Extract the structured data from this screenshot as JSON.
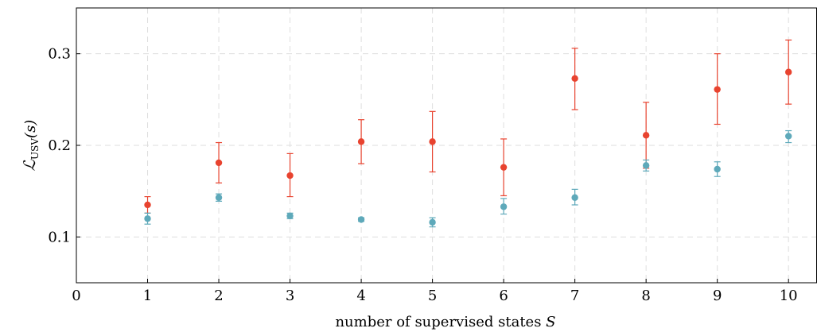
{
  "chart_data": {
    "type": "scatter",
    "xlabel_text": "number of supervised states ",
    "xlabel_var": "S",
    "ylabel_main": "ℒ",
    "ylabel_sub": "USV",
    "ylabel_tail": "(s)",
    "xlim": [
      0,
      10.4
    ],
    "ylim": [
      0.05,
      0.35
    ],
    "x_ticks": [
      0,
      1,
      2,
      3,
      4,
      5,
      6,
      7,
      8,
      9,
      10
    ],
    "y_ticks": [
      0.1,
      0.2,
      0.3
    ],
    "x_tick_labels": [
      "0",
      "1",
      "2",
      "3",
      "4",
      "5",
      "6",
      "7",
      "8",
      "9",
      "10"
    ],
    "y_tick_labels": [
      "0.1",
      "0.2",
      "0.3"
    ],
    "grid": true,
    "series": [
      {
        "color": "#e8432f",
        "points": [
          {
            "x": 1,
            "y": 0.135,
            "lo": 0.126,
            "hi": 0.144
          },
          {
            "x": 2,
            "y": 0.181,
            "lo": 0.159,
            "hi": 0.203
          },
          {
            "x": 3,
            "y": 0.167,
            "lo": 0.144,
            "hi": 0.191
          },
          {
            "x": 4,
            "y": 0.204,
            "lo": 0.18,
            "hi": 0.228
          },
          {
            "x": 5,
            "y": 0.204,
            "lo": 0.171,
            "hi": 0.237
          },
          {
            "x": 6,
            "y": 0.176,
            "lo": 0.145,
            "hi": 0.207
          },
          {
            "x": 7,
            "y": 0.273,
            "lo": 0.239,
            "hi": 0.306
          },
          {
            "x": 8,
            "y": 0.211,
            "lo": 0.175,
            "hi": 0.247
          },
          {
            "x": 9,
            "y": 0.261,
            "lo": 0.223,
            "hi": 0.3
          },
          {
            "x": 10,
            "y": 0.28,
            "lo": 0.245,
            "hi": 0.315
          }
        ]
      },
      {
        "color": "#5ea9ba",
        "points": [
          {
            "x": 1,
            "y": 0.12,
            "lo": 0.114,
            "hi": 0.126
          },
          {
            "x": 2,
            "y": 0.143,
            "lo": 0.139,
            "hi": 0.147
          },
          {
            "x": 3,
            "y": 0.123,
            "lo": 0.12,
            "hi": 0.126
          },
          {
            "x": 4,
            "y": 0.119,
            "lo": 0.117,
            "hi": 0.121
          },
          {
            "x": 5,
            "y": 0.116,
            "lo": 0.111,
            "hi": 0.121
          },
          {
            "x": 6,
            "y": 0.133,
            "lo": 0.125,
            "hi": 0.142
          },
          {
            "x": 7,
            "y": 0.143,
            "lo": 0.135,
            "hi": 0.152
          },
          {
            "x": 8,
            "y": 0.178,
            "lo": 0.172,
            "hi": 0.184
          },
          {
            "x": 9,
            "y": 0.174,
            "lo": 0.166,
            "hi": 0.182
          },
          {
            "x": 10,
            "y": 0.21,
            "lo": 0.203,
            "hi": 0.216
          }
        ]
      }
    ]
  }
}
